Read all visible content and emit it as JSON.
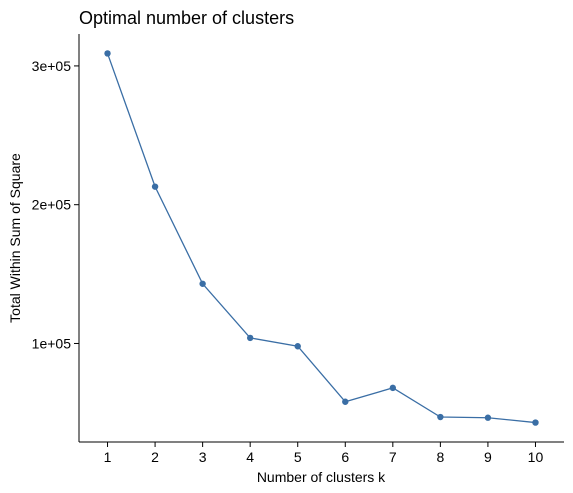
{
  "chart_data": {
    "type": "line",
    "title": "Optimal number of clusters",
    "xlabel": "Number of clusters k",
    "ylabel": "Total Within Sum of Square",
    "x": [
      1,
      2,
      3,
      4,
      5,
      6,
      7,
      8,
      9,
      10
    ],
    "series": [
      {
        "values": [
          309000,
          213000,
          143000,
          104000,
          98000,
          58000,
          68000,
          47000,
          46500,
          43000
        ]
      }
    ],
    "xticks": [
      "1",
      "2",
      "3",
      "4",
      "5",
      "6",
      "7",
      "8",
      "9",
      "10"
    ],
    "yticks": [
      {
        "value": 100000,
        "label": "1e+05"
      },
      {
        "value": 200000,
        "label": "2e+05"
      },
      {
        "value": 300000,
        "label": "3e+05"
      }
    ],
    "xlim": [
      0.4,
      10.6
    ],
    "ylim": [
      29000,
      323000
    ],
    "grid": false,
    "colors": {
      "series": "#3a6ea5",
      "axis": "#000000"
    }
  }
}
